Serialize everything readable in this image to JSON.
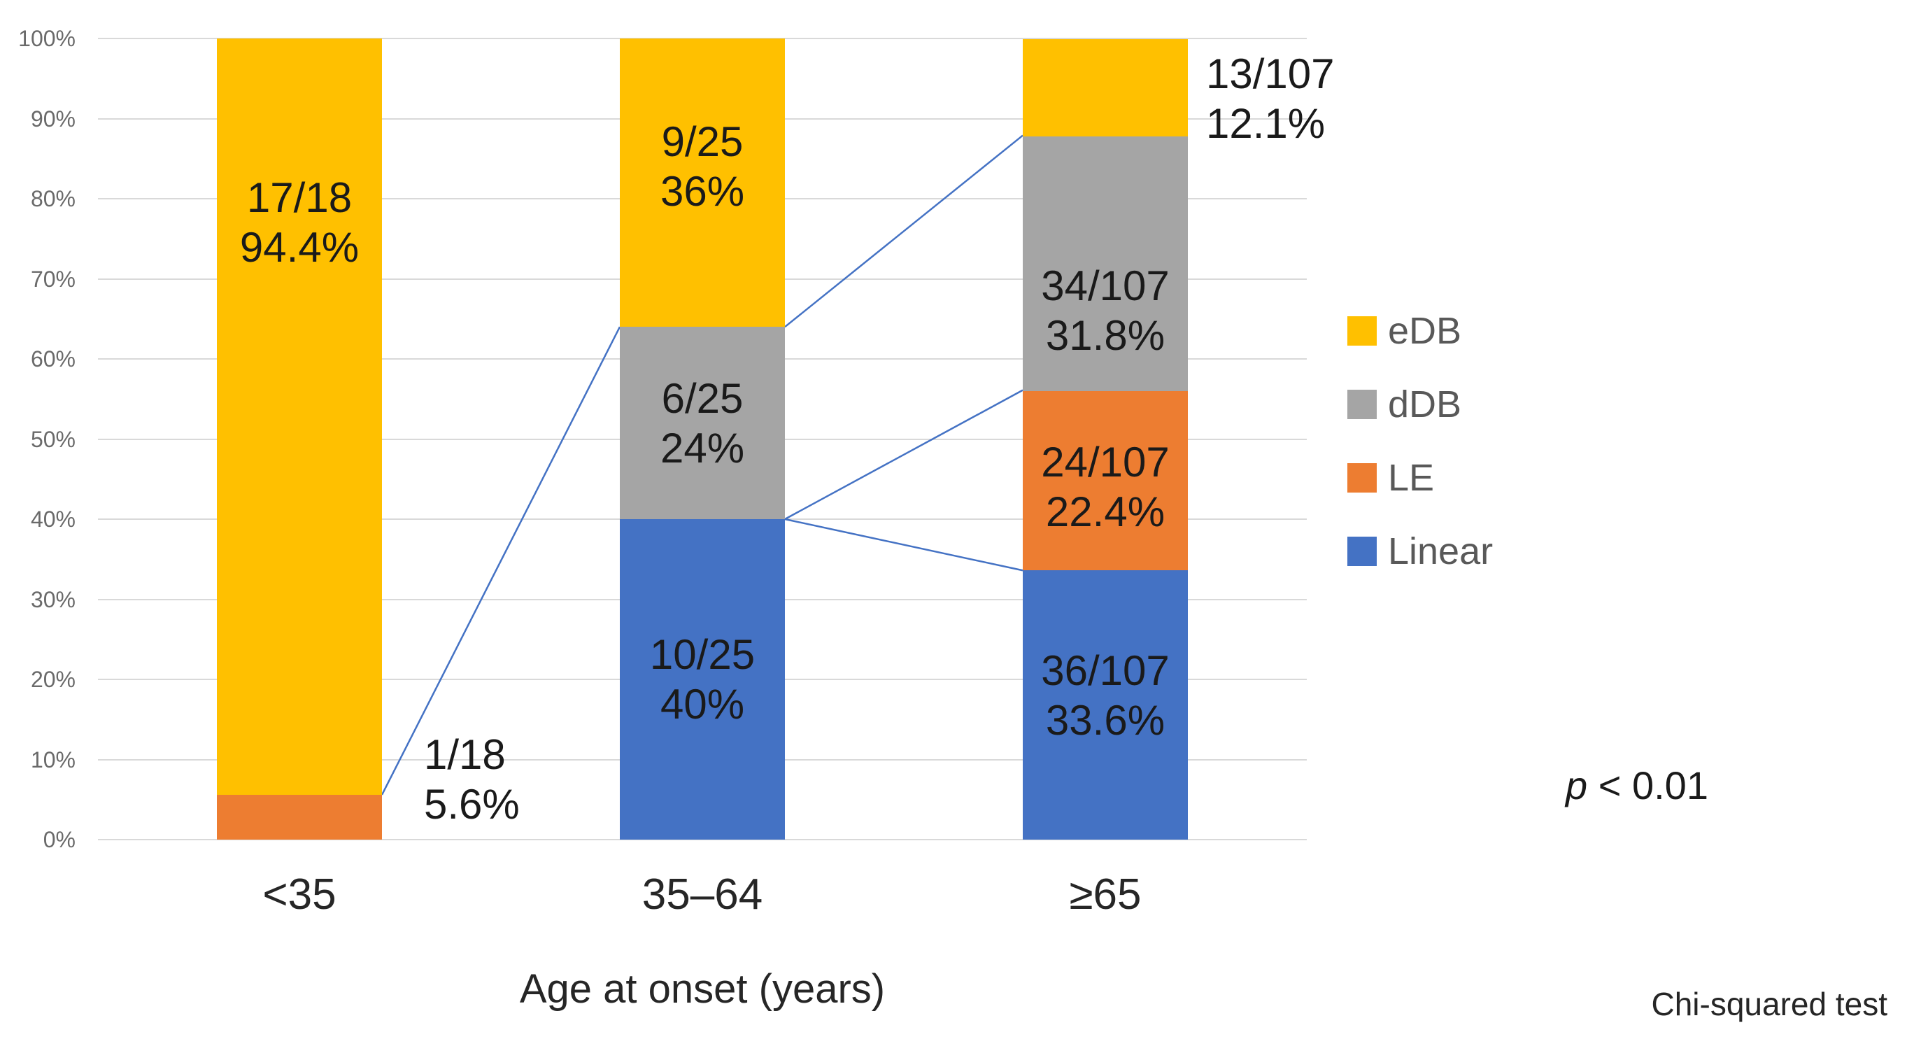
{
  "chart_data": {
    "type": "bar",
    "subtype": "100-percent-stacked-column",
    "title": "",
    "xlabel": "Age at onset (years)",
    "ylabel": "",
    "ylim": [
      0,
      100
    ],
    "grid": true,
    "y_ticks": [
      {
        "value": 0,
        "label": "0%"
      },
      {
        "value": 10,
        "label": "10%"
      },
      {
        "value": 20,
        "label": "20%"
      },
      {
        "value": 30,
        "label": "30%"
      },
      {
        "value": 40,
        "label": "40%"
      },
      {
        "value": 50,
        "label": "50%"
      },
      {
        "value": 60,
        "label": "60%"
      },
      {
        "value": 70,
        "label": "70%"
      },
      {
        "value": 80,
        "label": "80%"
      },
      {
        "value": 90,
        "label": "90%"
      },
      {
        "value": 100,
        "label": "100%"
      }
    ],
    "categories": [
      "<35",
      "35–64",
      "≥65"
    ],
    "series": [
      {
        "name": "Linear",
        "color": "#4472C4",
        "values_pct": [
          0,
          40,
          33.6
        ],
        "counts": [
          "0/18",
          "10/25",
          "36/107"
        ]
      },
      {
        "name": "LE",
        "color": "#ED7D31",
        "values_pct": [
          5.6,
          0,
          22.4
        ],
        "counts": [
          "1/18",
          "0/25",
          "24/107"
        ]
      },
      {
        "name": "dDB",
        "color": "#A5A5A5",
        "values_pct": [
          0,
          24,
          31.8
        ],
        "counts": [
          "0/18",
          "6/25",
          "34/107"
        ]
      },
      {
        "name": "eDB",
        "color": "#FFC000",
        "values_pct": [
          94.4,
          36,
          12.1
        ],
        "counts": [
          "17/18",
          "9/25",
          "13/107"
        ]
      }
    ],
    "bars": [
      {
        "category": "<35",
        "segments": [
          {
            "series": "LE",
            "pct": 5.6,
            "label": {
              "lines": [
                "1/18",
                "5.6%"
              ],
              "placement": "right",
              "anchor_pct": 7.5,
              "dx": 60
            }
          },
          {
            "series": "eDB",
            "pct": 94.4,
            "label": {
              "lines": [
                "17/18",
                "94.4%"
              ],
              "placement": "inside",
              "anchor_pct": 77
            }
          }
        ]
      },
      {
        "category": "35–64",
        "segments": [
          {
            "series": "Linear",
            "pct": 40,
            "label": {
              "lines": [
                "10/25",
                "40%"
              ],
              "placement": "inside",
              "anchor_pct": 20
            }
          },
          {
            "series": "dDB",
            "pct": 24,
            "label": {
              "lines": [
                "6/25",
                "24%"
              ],
              "placement": "inside",
              "anchor_pct": 52
            }
          },
          {
            "series": "eDB",
            "pct": 36,
            "label": {
              "lines": [
                "9/25",
                "36%"
              ],
              "placement": "inside",
              "anchor_pct": 84
            }
          }
        ]
      },
      {
        "category": "≥65",
        "segments": [
          {
            "series": "Linear",
            "pct": 33.6,
            "label": {
              "lines": [
                "36/107",
                "33.6%"
              ],
              "placement": "inside",
              "anchor_pct": 18
            }
          },
          {
            "series": "LE",
            "pct": 22.4,
            "label": {
              "lines": [
                "24/107",
                "22.4%"
              ],
              "placement": "inside",
              "anchor_pct": 44
            }
          },
          {
            "series": "dDB",
            "pct": 31.8,
            "label": {
              "lines": [
                "34/107",
                "31.8%"
              ],
              "placement": "inside",
              "anchor_pct": 66
            }
          },
          {
            "series": "eDB",
            "pct": 12.1,
            "label": {
              "lines": [
                "13/107",
                "12.1%"
              ],
              "placement": "right",
              "anchor_pct": 92.5,
              "dx": 26
            }
          }
        ]
      }
    ],
    "connector_color": "#4472C4",
    "connector_lines": [
      {
        "from_bar": 0,
        "from_pct": 5.6,
        "to_bar": 1,
        "to_pct": 64
      },
      {
        "from_bar": 1,
        "from_pct": 64,
        "to_bar": 2,
        "to_pct": 87.9
      },
      {
        "from_bar": 1,
        "from_pct": 40,
        "to_bar": 2,
        "to_pct": 56.1
      },
      {
        "from_bar": 1,
        "from_pct": 40,
        "to_bar": 2,
        "to_pct": 33.6
      }
    ],
    "legend": {
      "position": "right",
      "items": [
        {
          "series": "eDB",
          "label": "eDB"
        },
        {
          "series": "dDB",
          "label": "dDB"
        },
        {
          "series": "LE",
          "label": "LE"
        },
        {
          "series": "Linear",
          "label": "Linear"
        }
      ]
    },
    "annotations": {
      "p_symbol": "p",
      "p_rest": " < 0.01",
      "method": "Chi-squared test"
    }
  }
}
